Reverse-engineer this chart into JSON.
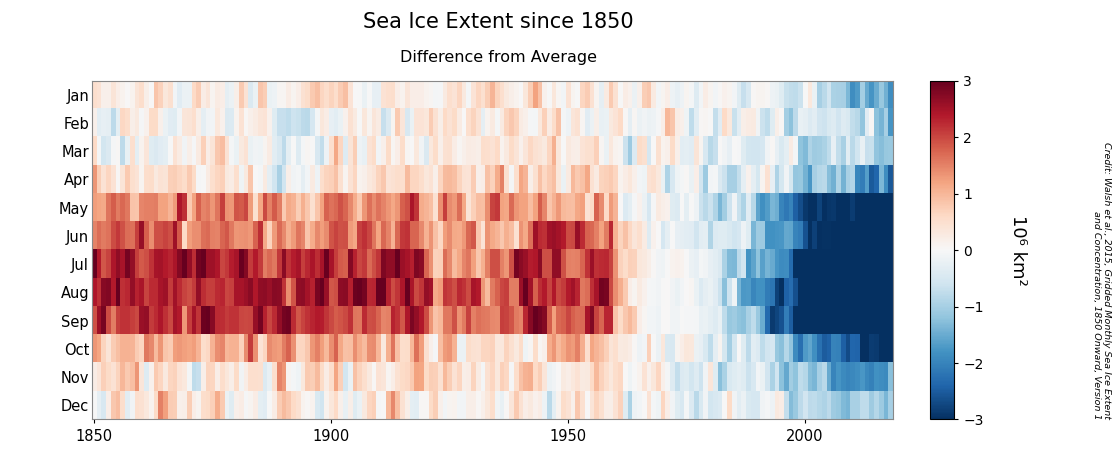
{
  "title": "Sea Ice Extent since 1850",
  "subtitle": "Difference from Average",
  "months": [
    "Jan",
    "Feb",
    "Mar",
    "Apr",
    "May",
    "Jun",
    "Jul",
    "Aug",
    "Sep",
    "Oct",
    "Nov",
    "Dec"
  ],
  "year_start": 1850,
  "year_end": 2018,
  "vmin": -3,
  "vmax": 3,
  "cmap": "RdBu_r",
  "colorbar_label": "10⁶ km²",
  "credit_text": "Credit: Walsh et al., 2015, Gridded Monthly Sea Ice Extent\nand Concentration, 1850 Onward, Version 1",
  "xlabel_ticks": [
    1850,
    1900,
    1950,
    2000
  ],
  "fig_width": 11.2,
  "fig_height": 4.74,
  "dpi": 100
}
